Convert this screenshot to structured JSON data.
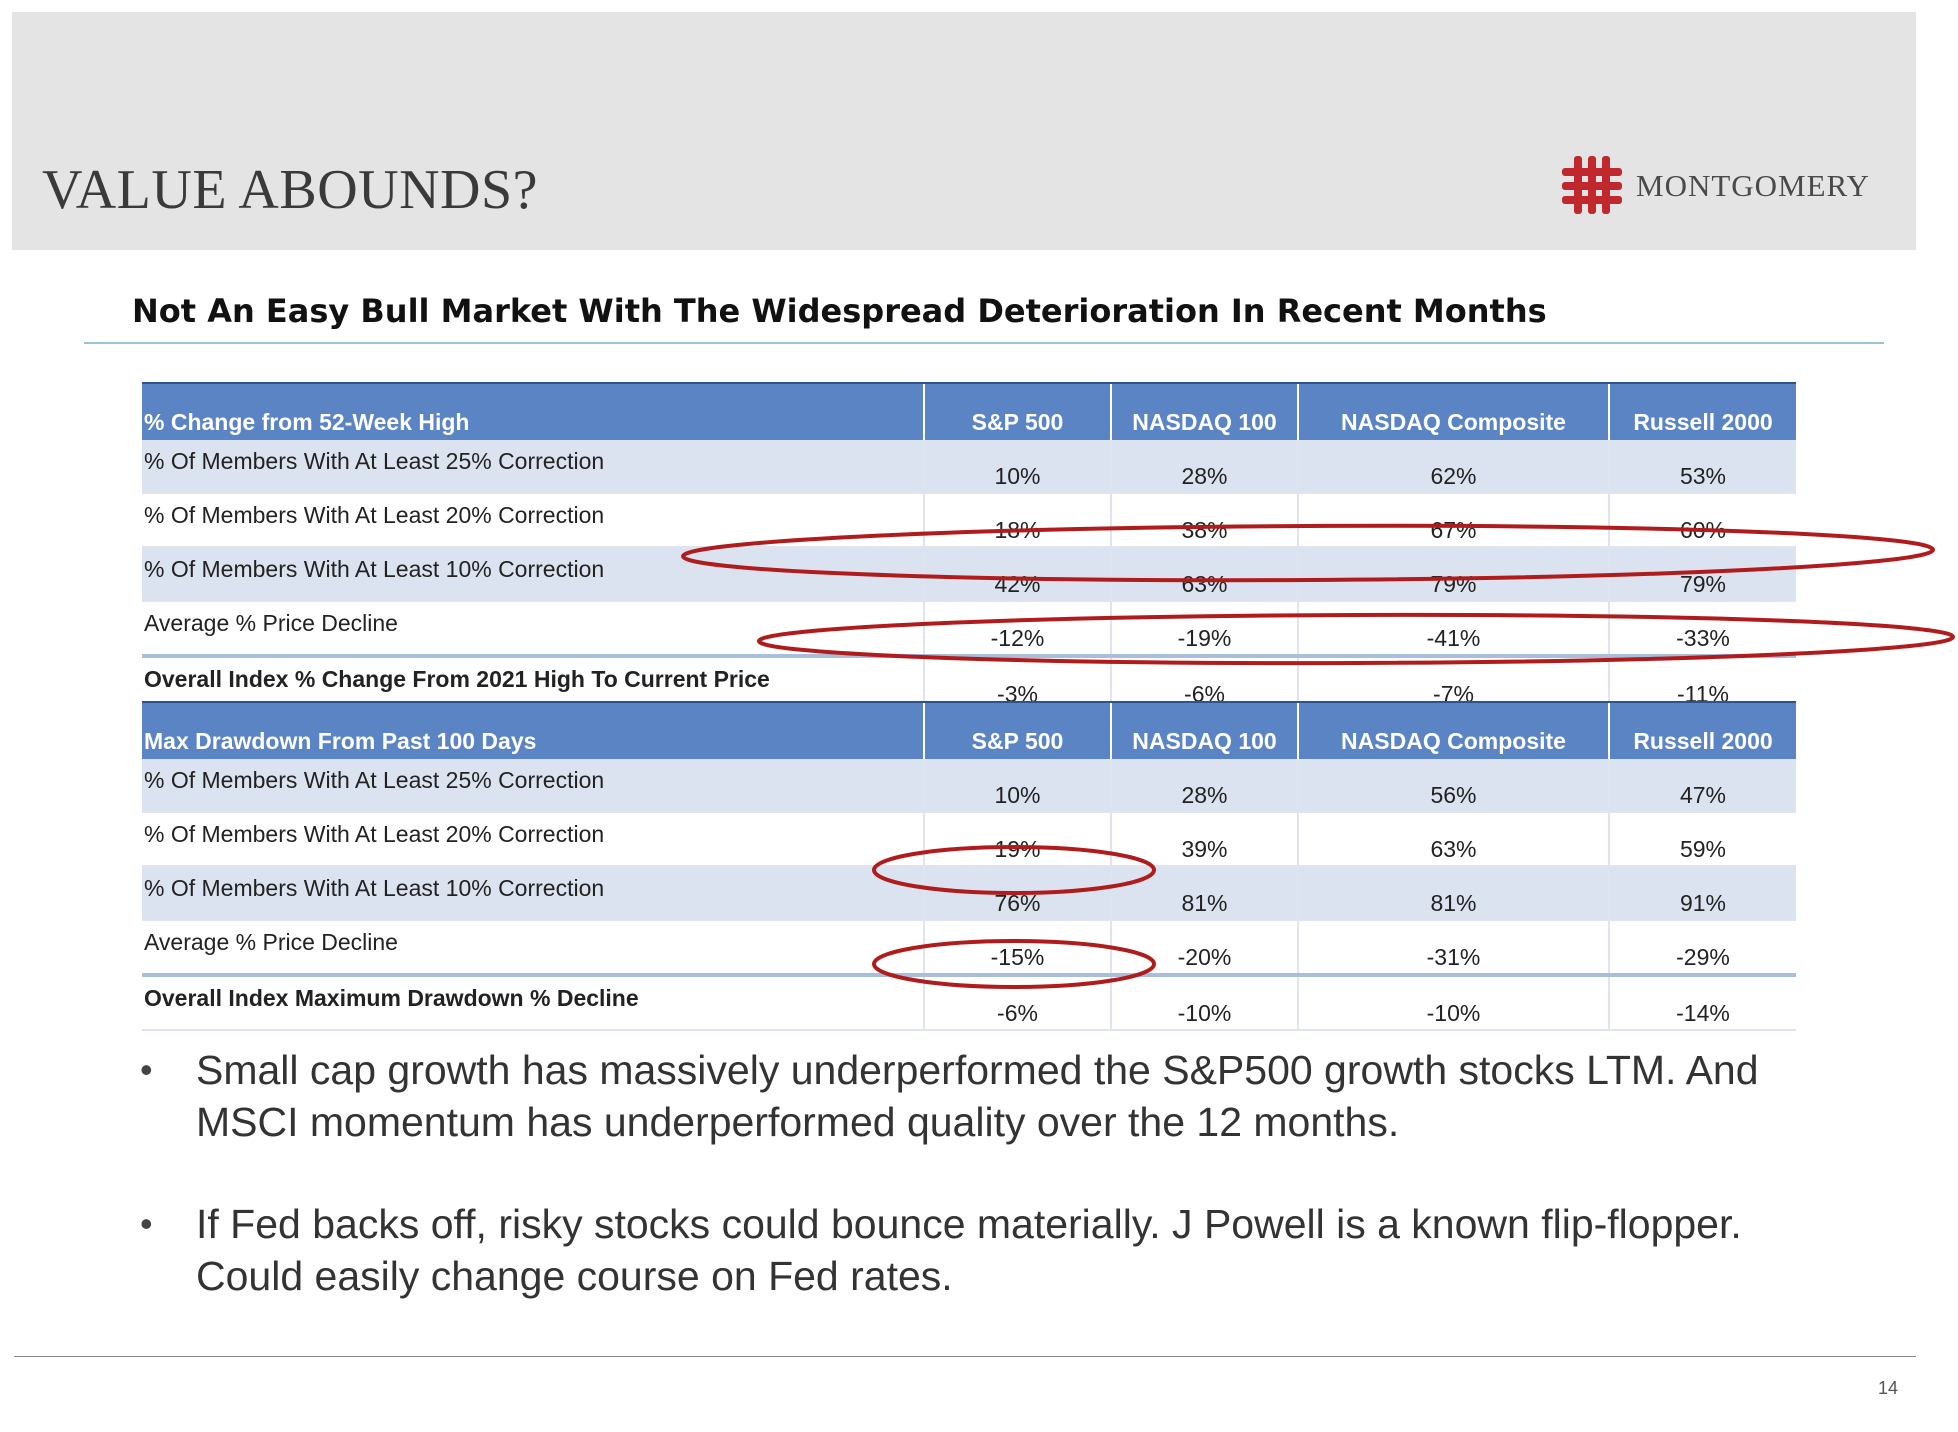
{
  "slide": {
    "title": "VALUE ABOUNDS?",
    "logo_text": "MONTGOMERY",
    "subtitle": "Not An Easy Bull Market With The Widespread Deterioration In Recent Months",
    "page_number": "14"
  },
  "table1": {
    "headers": [
      "% Change from 52-Week High",
      "S&P 500",
      "NASDAQ 100",
      "NASDAQ Composite",
      "Russell 2000"
    ],
    "rows": [
      {
        "label": "% Of Members With At Least 25% Correction",
        "values": [
          "10%",
          "28%",
          "62%",
          "53%"
        ]
      },
      {
        "label": "% Of Members With At Least 20% Correction",
        "values": [
          "18%",
          "38%",
          "67%",
          "60%"
        ]
      },
      {
        "label": "% Of Members With At Least 10% Correction",
        "values": [
          "42%",
          "63%",
          "79%",
          "79%"
        ]
      },
      {
        "label": "Average % Price Decline",
        "values": [
          "-12%",
          "-19%",
          "-41%",
          "-33%"
        ]
      },
      {
        "label": "Overall Index % Change From 2021 High To Current Price",
        "values": [
          "-3%",
          "-6%",
          "-7%",
          "-11%"
        ]
      }
    ]
  },
  "table2": {
    "headers": [
      "Max Drawdown From Past 100 Days",
      "S&P 500",
      "NASDAQ 100",
      "NASDAQ Composite",
      "Russell 2000"
    ],
    "rows": [
      {
        "label": "% Of Members With At Least 25% Correction",
        "values": [
          "10%",
          "28%",
          "56%",
          "47%"
        ]
      },
      {
        "label": "% Of Members With At Least 20% Correction",
        "values": [
          "19%",
          "39%",
          "63%",
          "59%"
        ]
      },
      {
        "label": "% Of Members With At Least 10% Correction",
        "values": [
          "76%",
          "81%",
          "81%",
          "91%"
        ]
      },
      {
        "label": "Average % Price Decline",
        "values": [
          "-15%",
          "-20%",
          "-31%",
          "-29%"
        ]
      },
      {
        "label": "Overall Index Maximum Drawdown % Decline",
        "values": [
          "-6%",
          "-10%",
          "-10%",
          "-14%"
        ]
      }
    ]
  },
  "bullets": [
    "Small cap growth has massively underperformed the S&P500 growth stocks LTM.  And MSCI momentum has underperformed quality over the 12 months.",
    "If Fed backs off, risky stocks could bounce materially.  J Powell is a known flip-flopper. Could easily change course on Fed rates."
  ],
  "colors": {
    "header_fill": "#5b84c4",
    "row_shade": "#dce3f0",
    "annotation_red": "#b01c1c",
    "logo_red": "#c0282d"
  },
  "icons": [
    "montgomery-logo-icon",
    "bullet-icon"
  ]
}
